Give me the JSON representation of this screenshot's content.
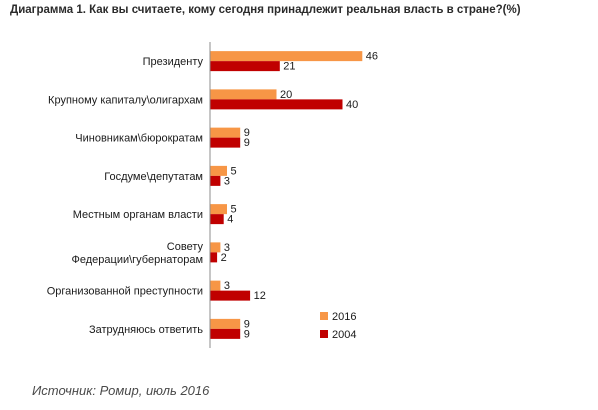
{
  "chart_data": {
    "type": "bar",
    "orientation": "horizontal",
    "title": "Диаграмма 1. Как вы считаете, кому  сегодня принадлежит реальная власть в стране?(%)",
    "categories": [
      [
        "Президенту"
      ],
      [
        "Крупному капиталу\\олигархам"
      ],
      [
        "Чиновникам\\бюрократам"
      ],
      [
        "Госдуме\\депутатам"
      ],
      [
        "Местным органам власти"
      ],
      [
        "Совету",
        "Федерации\\губернаторам"
      ],
      [
        "Организованной преступности"
      ],
      [
        "Затрудняюсь ответить"
      ]
    ],
    "series": [
      {
        "name": "2016",
        "color": "#f79646",
        "values": [
          46,
          20,
          9,
          5,
          5,
          3,
          3,
          9
        ]
      },
      {
        "name": "2004",
        "color": "#c00000",
        "values": [
          21,
          40,
          9,
          3,
          4,
          2,
          12,
          9
        ]
      }
    ],
    "legend_position": "bottom-right",
    "grid": false,
    "data_labels": true
  },
  "source": "Источник: Ромир, июль 2016"
}
